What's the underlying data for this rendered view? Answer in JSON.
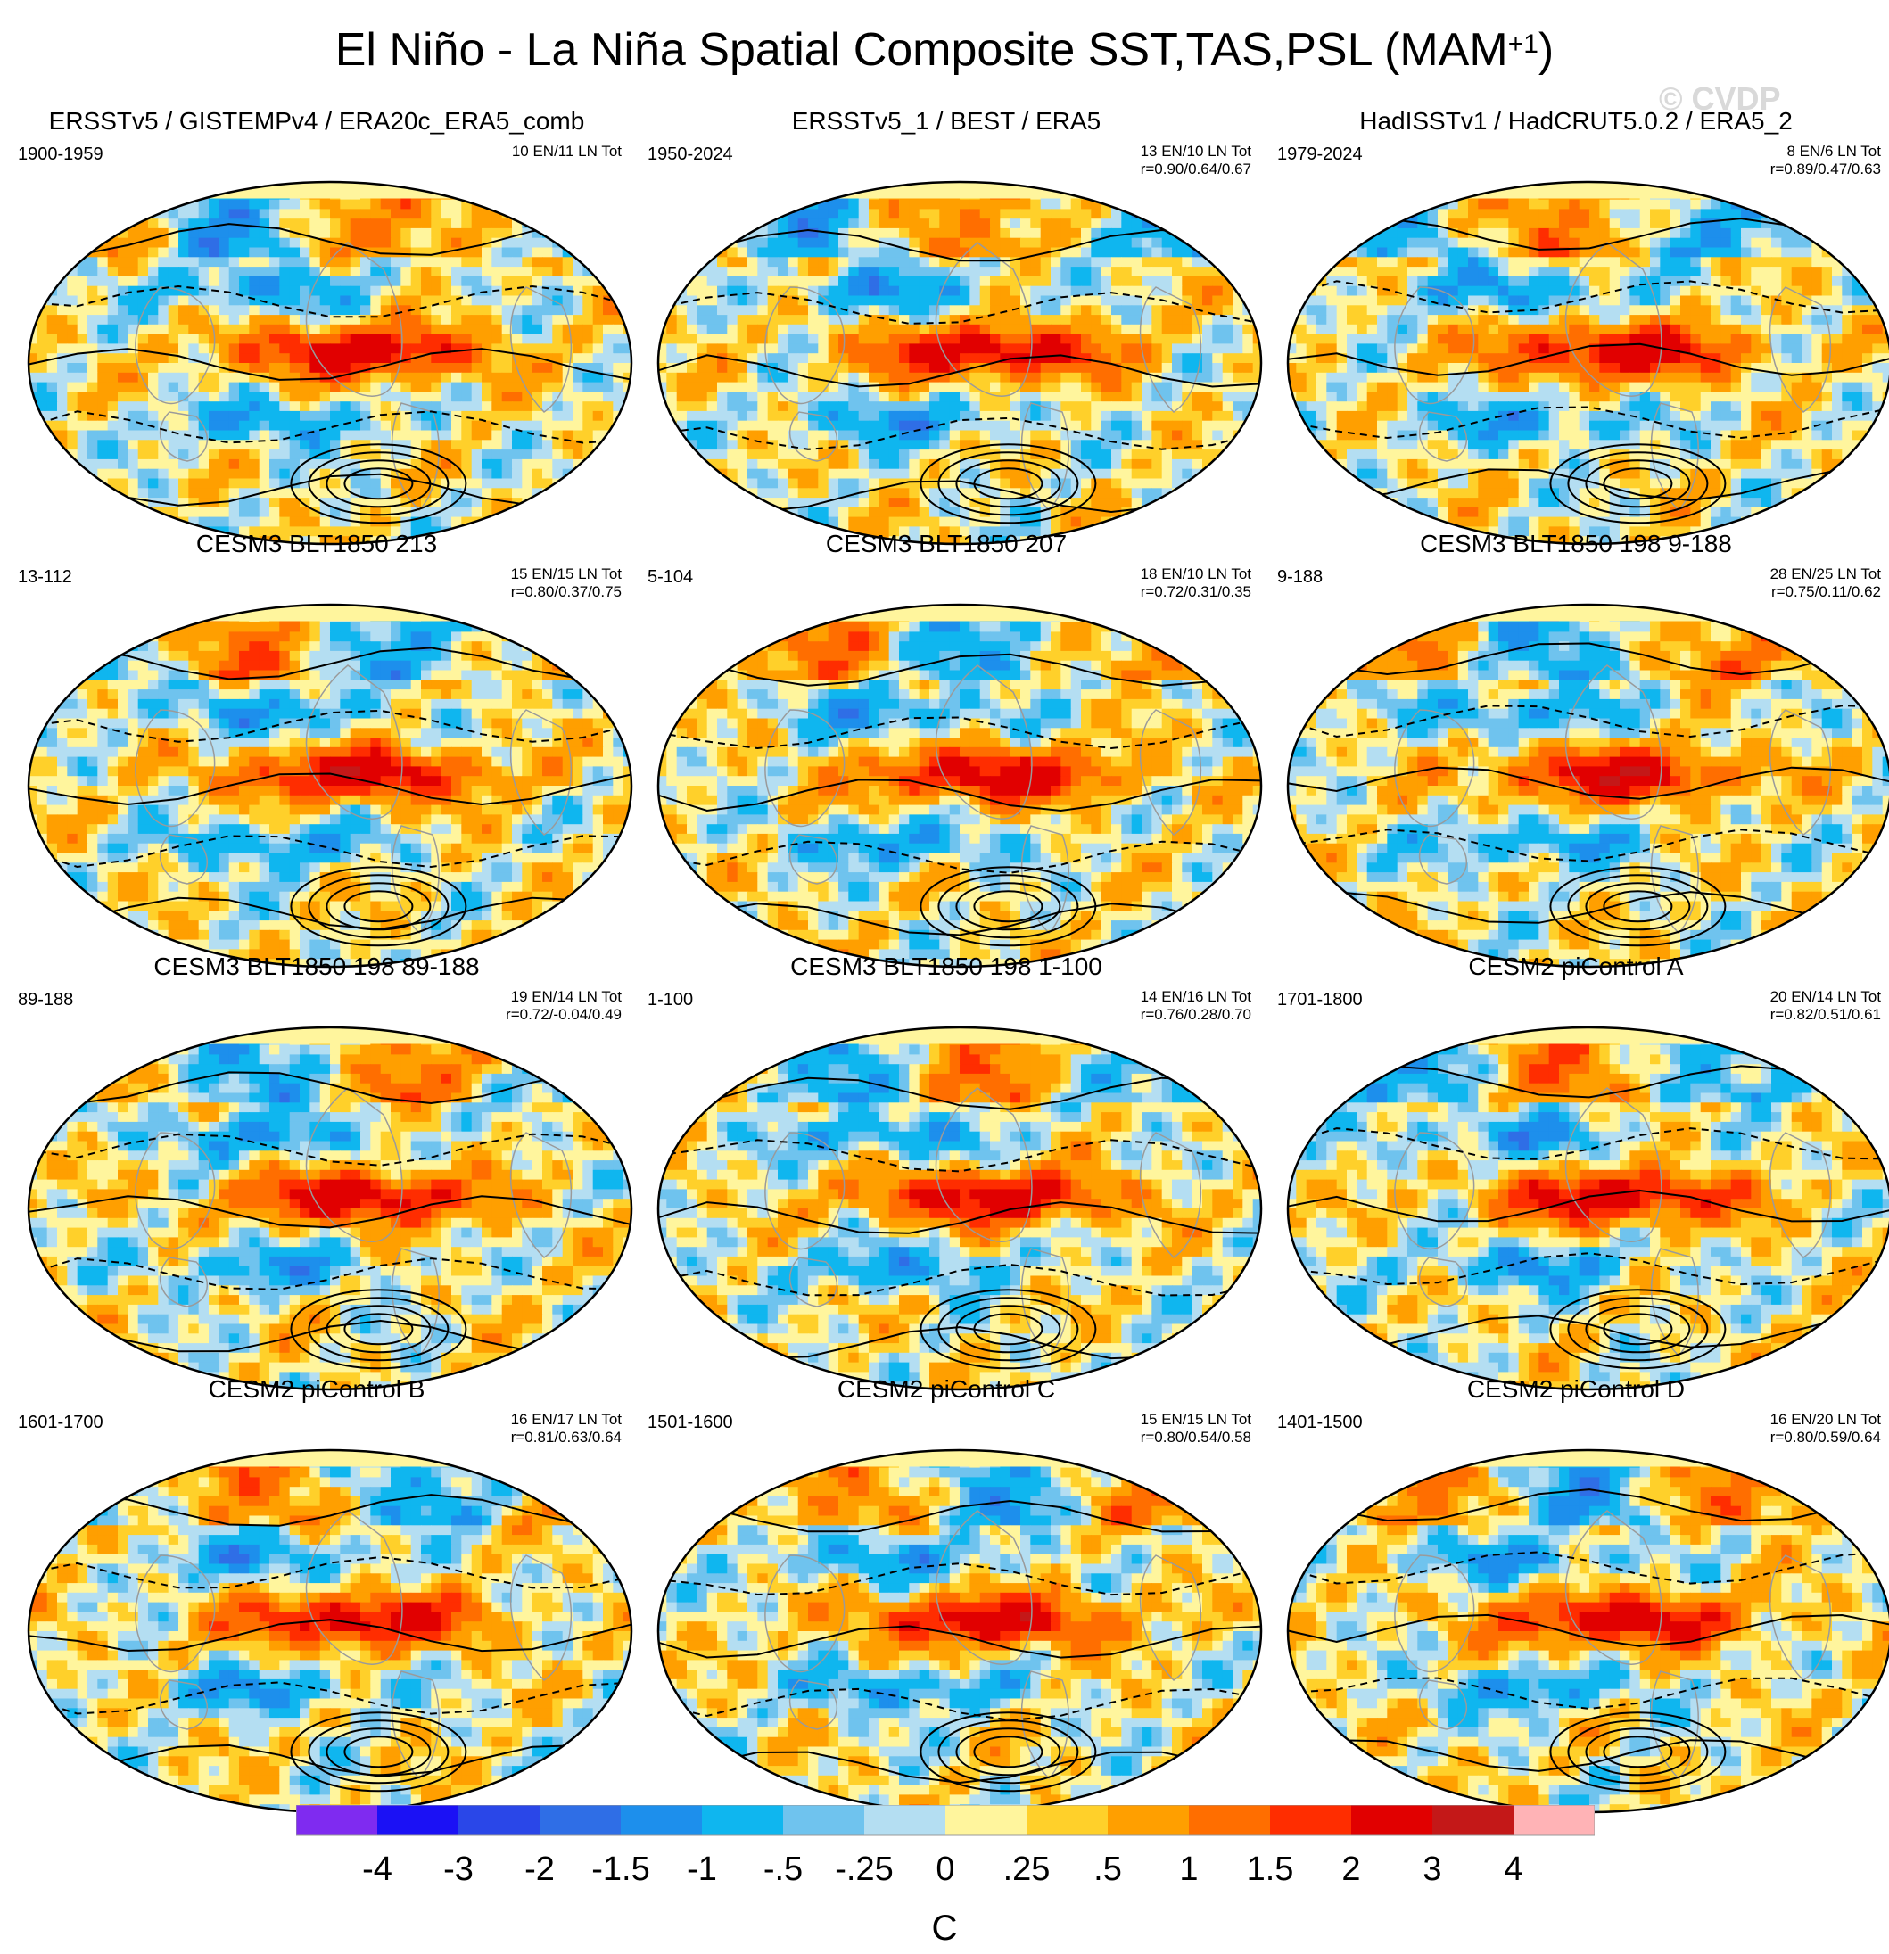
{
  "figure": {
    "title": "El Niño - La Niña Spatial Composite SST,TAS,PSL (MAM",
    "title_sup": "+1",
    "title_end": ")",
    "watermark": "© CVDP"
  },
  "panels": [
    {
      "title": "ERSSTv5 / GISTEMPv4 / ERA20c_ERA5_comb",
      "years": "1900-1959",
      "count": "10 EN/11 LN Tot",
      "corr": "",
      "seed": 1
    },
    {
      "title": "ERSSTv5_1 / BEST / ERA5",
      "years": "1950-2024",
      "count": "13 EN/10 LN Tot",
      "corr": "r=0.90/0.64/0.67",
      "seed": 2
    },
    {
      "title": "HadISSTv1 / HadCRUT5.0.2 / ERA5_2",
      "years": "1979-2024",
      "count": "8 EN/6 LN Tot",
      "corr": "r=0.89/0.47/0.63",
      "seed": 3
    },
    {
      "title": "CESM3 BLT1850 213",
      "years": "13-112",
      "count": "15 EN/15 LN Tot",
      "corr": "r=0.80/0.37/0.75",
      "seed": 4
    },
    {
      "title": "CESM3 BLT1850 207",
      "years": "5-104",
      "count": "18 EN/10 LN Tot",
      "corr": "r=0.72/0.31/0.35",
      "seed": 5
    },
    {
      "title": "CESM3 BLT1850 198 9-188",
      "years": "9-188",
      "count": "28 EN/25 LN Tot",
      "corr": "r=0.75/0.11/0.62",
      "seed": 6
    },
    {
      "title": "CESM3 BLT1850 198 89-188",
      "years": "89-188",
      "count": "19 EN/14 LN Tot",
      "corr": "r=0.72/-0.04/0.49",
      "seed": 7
    },
    {
      "title": "CESM3 BLT1850 198 1-100",
      "years": "1-100",
      "count": "14 EN/16 LN Tot",
      "corr": "r=0.76/0.28/0.70",
      "seed": 8
    },
    {
      "title": "CESM2 piControl A",
      "years": "1701-1800",
      "count": "20 EN/14 LN Tot",
      "corr": "r=0.82/0.51/0.61",
      "seed": 9
    },
    {
      "title": "CESM2 piControl B",
      "years": "1601-1700",
      "count": "16 EN/17 LN Tot",
      "corr": "r=0.81/0.63/0.64",
      "seed": 10
    },
    {
      "title": "CESM2 piControl C",
      "years": "1501-1600",
      "count": "15 EN/15 LN Tot",
      "corr": "r=0.80/0.54/0.58",
      "seed": 11
    },
    {
      "title": "CESM2 piControl D",
      "years": "1401-1500",
      "count": "16 EN/20 LN Tot",
      "corr": "r=0.80/0.59/0.64",
      "seed": 12
    }
  ],
  "colorbar": {
    "colors": [
      "#7f2bf0",
      "#1b11f5",
      "#2a47e8",
      "#2f6ee6",
      "#1d8fec",
      "#0fb6ef",
      "#6fc3ee",
      "#b4def2",
      "#fff59d",
      "#ffd02a",
      "#ff9f00",
      "#ff6e00",
      "#ff2d00",
      "#e10000",
      "#c41818",
      "#ffb3b6"
    ],
    "ticks": [
      "-4",
      "-3",
      "-2",
      "-1.5",
      "-1",
      "-.5",
      "-.25",
      "0",
      ".25",
      ".5",
      "1",
      "1.5",
      "2",
      "3",
      "4"
    ],
    "units": "C"
  }
}
